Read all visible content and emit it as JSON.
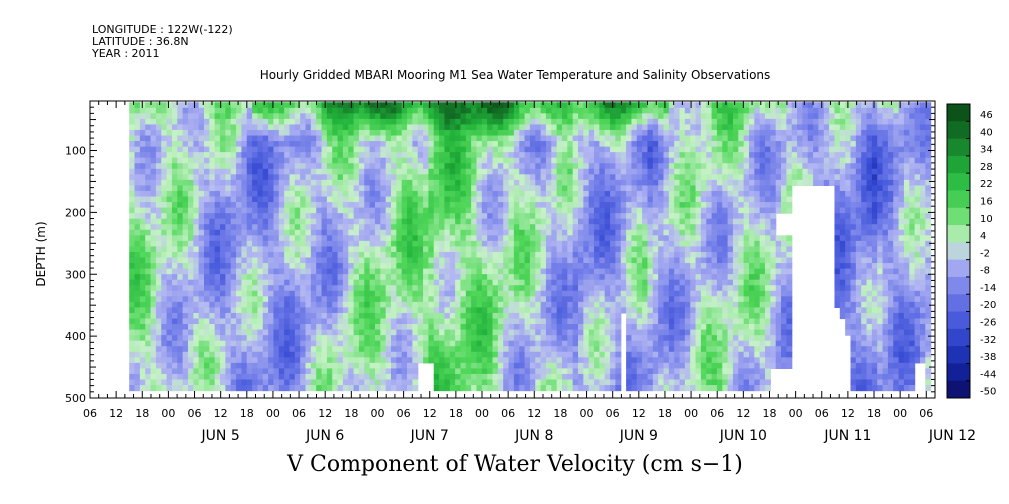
{
  "header": {
    "longitude": "LONGITUDE : 122W(-122)",
    "latitude": "LATITUDE : 36.8N",
    "year": "YEAR : 2011",
    "title": "Hourly Gridded MBARI Mooring M1 Sea Water Temperature and Salinity Observations"
  },
  "footer": {
    "variable_title": "V Component of Water Velocity (cm s−1)"
  },
  "colors": {
    "strong_positive": "#0a5c20",
    "positive": "#3fd34f",
    "weak_positive": "#bff0bf",
    "weak_negative": "#b4b4f0",
    "negative": "#6e78e6",
    "strong_negative": "#0a0a60",
    "missing": "#ffffff"
  },
  "chart_data": {
    "type": "heatmap",
    "title": "Hourly Gridded MBARI Mooring M1 Sea Water Temperature and Salinity Observations",
    "xlabel": "",
    "ylabel": "DEPTH (m)",
    "y_axis_inverted": true,
    "ylim": [
      500,
      20
    ],
    "yticks": [
      100,
      200,
      300,
      400,
      500
    ],
    "xlim": [
      "2011-06-04T06:00",
      "2011-06-12T08:00"
    ],
    "x_hour_ticks": [
      "06",
      "12",
      "18",
      "00",
      "06",
      "12",
      "18",
      "00",
      "06",
      "12",
      "18",
      "00",
      "06",
      "12",
      "18",
      "00",
      "06",
      "12",
      "18",
      "00",
      "06",
      "12",
      "18",
      "00",
      "06",
      "12",
      "18",
      "00",
      "06",
      "12",
      "18",
      "00",
      "06"
    ],
    "x_date_labels": [
      "JUN  5",
      "JUN  6",
      "JUN  7",
      "JUN  8",
      "JUN  9",
      "JUN 10",
      "JUN 11",
      "JUN 12"
    ],
    "data_start": "2011-06-04T15:00",
    "data_end": "2011-06-12T07:00",
    "colorbar": {
      "levels": [
        "46",
        "40",
        "34",
        "28",
        "22",
        "16",
        "10",
        "4",
        "-2",
        "-8",
        "-14",
        "-20",
        "-26",
        "-32",
        "-38",
        "-44",
        "-50"
      ],
      "range": [
        -50,
        52
      ],
      "units": "cm s-1"
    },
    "observations": [
      "Near-surface layer (about 20-60 m) dominated by positive values (green, up to ~40) from Jun 6 to Jun 9",
      "Mid-depth values mostly near zero to slightly negative (light blue) with patches of positive (green)",
      "Missing data below ~150 m on Jun 11 near 06-12 UT and near bottom after Jun 8"
    ]
  }
}
